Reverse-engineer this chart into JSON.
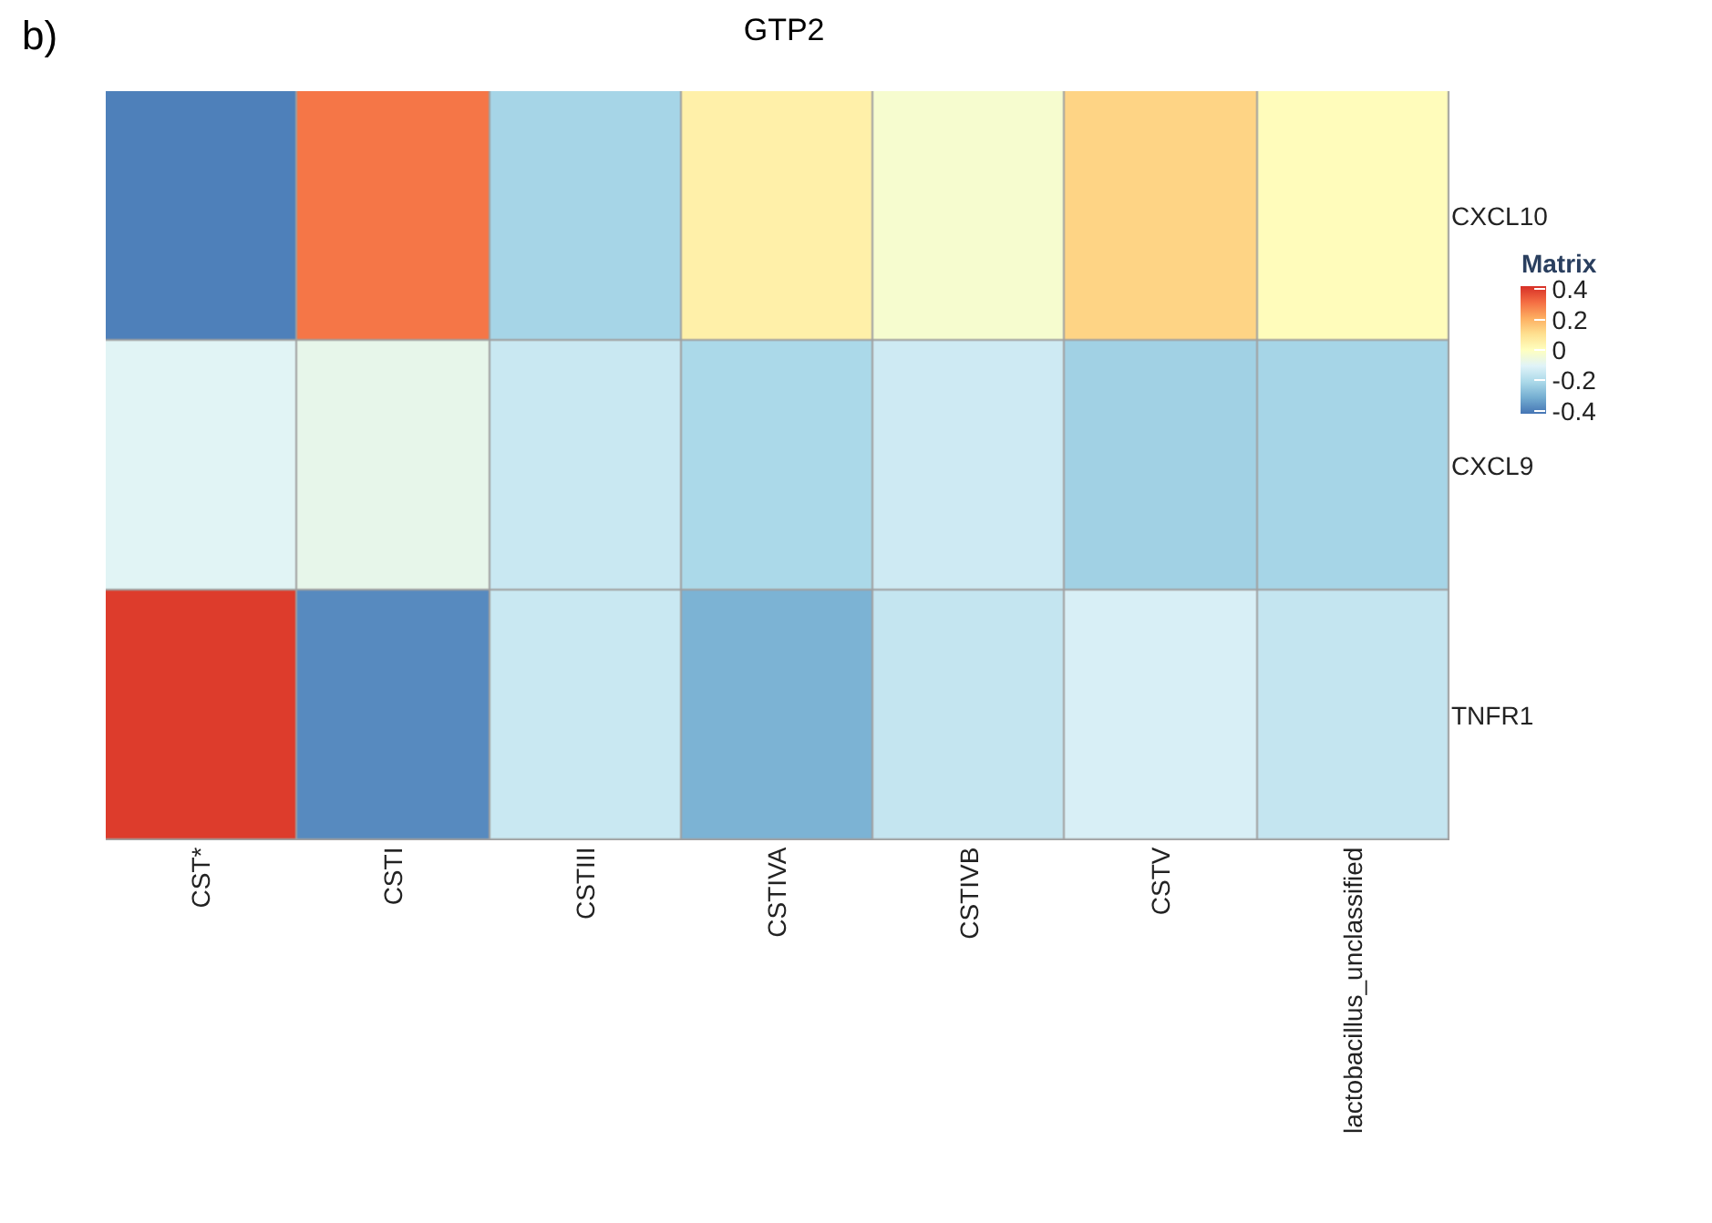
{
  "chart_data": {
    "type": "heatmap",
    "title": "GTP2",
    "clabel": "Matrix",
    "annotations": [
      "b)"
    ],
    "categories": [
      "CST*",
      "CSTI",
      "CSTIII",
      "CSTIVA",
      "CSTIVB",
      "CSTV",
      "lactobacillus_unclassified"
    ],
    "y_categories": [
      "CXCL10",
      "CXCL9",
      "TNFR1"
    ],
    "cells": [
      [
        -0.4,
        0.3,
        -0.22,
        0.05,
        -0.03,
        0.13,
        0.01
      ],
      [
        -0.1,
        -0.08,
        -0.15,
        -0.21,
        -0.14,
        -0.23,
        -0.22
      ],
      [
        0.4,
        -0.38,
        -0.15,
        -0.3,
        -0.16,
        -0.12,
        -0.16
      ]
    ],
    "clim": [
      -0.42,
      0.42
    ],
    "cticks": [
      0.4,
      0.2,
      0,
      -0.2,
      -0.4
    ],
    "colors": [
      "#4575b4",
      "#74add1",
      "#abd9e9",
      "#e0f3f8",
      "#ffffbf",
      "#fee090",
      "#fdae61",
      "#f46d43",
      "#d73027"
    ]
  }
}
